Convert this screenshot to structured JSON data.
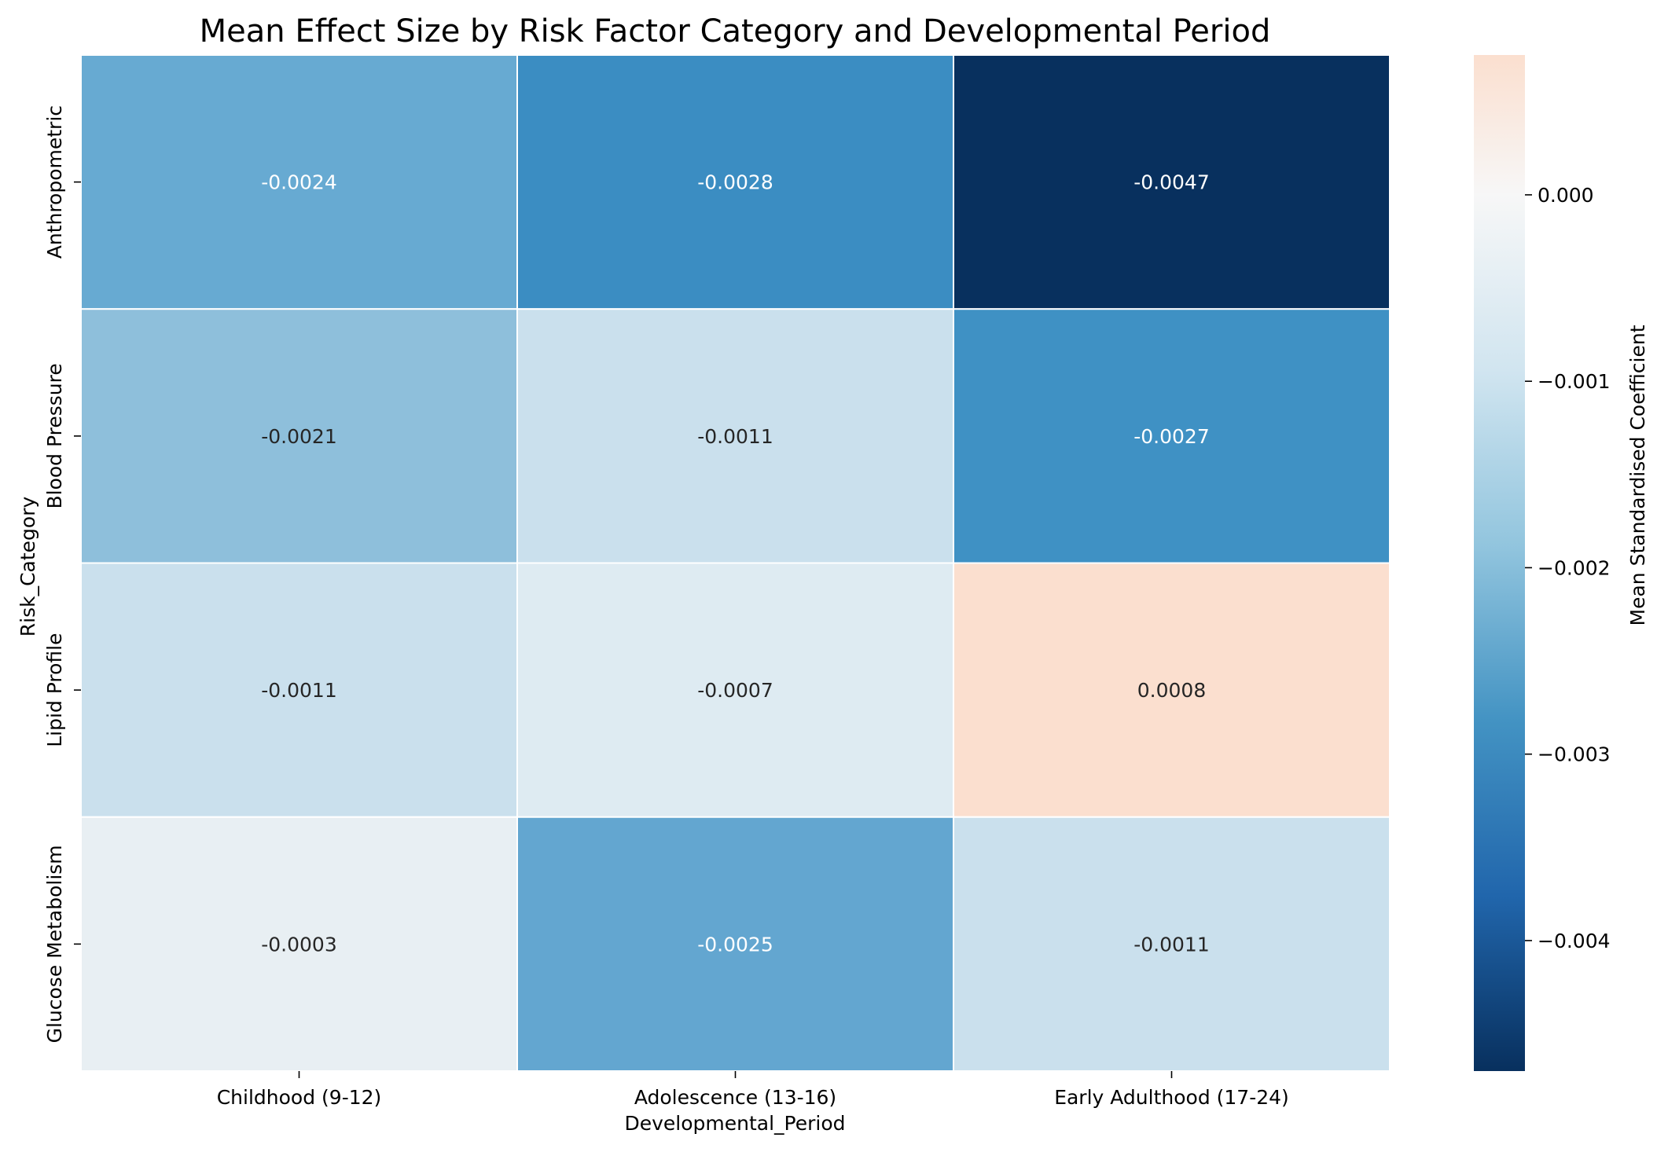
{
  "chart_data": {
    "type": "heatmap",
    "title": "Mean Effect Size by Risk Factor Category and Developmental Period",
    "xlabel": "Developmental_Period",
    "ylabel": "Risk_Category",
    "x_categories": [
      "Childhood (9-12)",
      "Adolescence (13-16)",
      "Early Adulthood (17-24)"
    ],
    "y_categories": [
      "Anthropometric",
      "Blood Pressure",
      "Lipid Profile",
      "Glucose Metabolism"
    ],
    "values": [
      [
        -0.0024,
        -0.0028,
        -0.0047
      ],
      [
        -0.0021,
        -0.0011,
        -0.0027
      ],
      [
        -0.0011,
        -0.0007,
        0.0008
      ],
      [
        -0.0003,
        -0.0025,
        -0.0011
      ]
    ],
    "cell_labels": [
      [
        "-0.0024",
        "-0.0028",
        "-0.0047"
      ],
      [
        "-0.0021",
        "-0.0011",
        "-0.0027"
      ],
      [
        "-0.0011",
        "-0.0007",
        "0.0008"
      ],
      [
        "-0.0003",
        "-0.0025",
        "-0.0011"
      ]
    ],
    "colormap": "RdBu_r",
    "colorbar": {
      "label": "Mean Standardised Coefficient",
      "vmin": -0.0047,
      "vmax": 0.00075,
      "ticks": [
        0.0,
        -0.001,
        -0.002,
        -0.003,
        -0.004
      ],
      "tick_labels": [
        "0.000",
        "−0.001",
        "−0.002",
        "−0.003",
        "−0.004"
      ]
    },
    "cell_colors": [
      [
        "#67aad2",
        "#3b8dc2",
        "#08305e"
      ],
      [
        "#8ebfdb",
        "#cae0ed",
        "#3f91c4"
      ],
      [
        "#cae0ed",
        "#deebf2",
        "#fbdfcf"
      ],
      [
        "#e8eff3",
        "#63a6d0",
        "#cae0ed"
      ]
    ],
    "colorbar_gradient": [
      "#08305e",
      "#2166ac",
      "#4393c3",
      "#92c5de",
      "#d1e5f0",
      "#f7f7f7",
      "#fbdfcf"
    ],
    "text_colors": {
      "light": "#ffffff",
      "dark": "#262626"
    }
  }
}
